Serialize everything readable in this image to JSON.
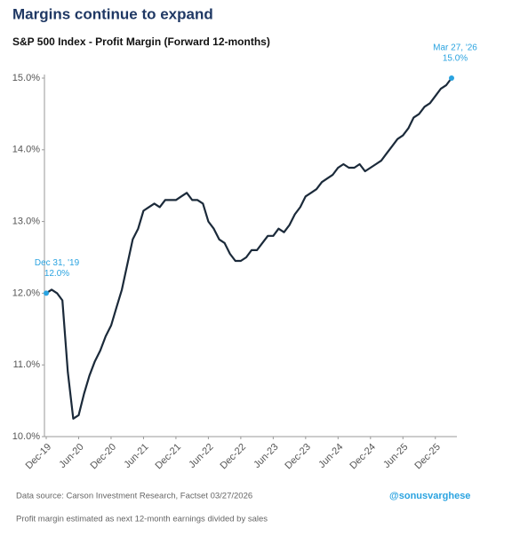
{
  "chart_data": {
    "type": "line",
    "title": "Margins continue to expand",
    "subtitle": "S&P 500 Index - Profit Margin (Forward 12-months)",
    "categories": [
      "Dec-19",
      "Jan-20",
      "Feb-20",
      "Mar-20",
      "Apr-20",
      "May-20",
      "Jun-20",
      "Jul-20",
      "Aug-20",
      "Sep-20",
      "Oct-20",
      "Nov-20",
      "Dec-20",
      "Jan-21",
      "Feb-21",
      "Mar-21",
      "Apr-21",
      "May-21",
      "Jun-21",
      "Jul-21",
      "Aug-21",
      "Sep-21",
      "Oct-21",
      "Nov-21",
      "Dec-21",
      "Jan-22",
      "Feb-22",
      "Mar-22",
      "Apr-22",
      "May-22",
      "Jun-22",
      "Jul-22",
      "Aug-22",
      "Sep-22",
      "Oct-22",
      "Nov-22",
      "Dec-22",
      "Jan-23",
      "Feb-23",
      "Mar-23",
      "Apr-23",
      "May-23",
      "Jun-23",
      "Jul-23",
      "Aug-23",
      "Sep-23",
      "Oct-23",
      "Nov-23",
      "Dec-23",
      "Jan-24",
      "Feb-24",
      "Mar-24",
      "Apr-24",
      "May-24",
      "Jun-24",
      "Jul-24",
      "Aug-24",
      "Sep-24",
      "Oct-24",
      "Nov-24",
      "Dec-24",
      "Jan-25",
      "Feb-25",
      "Mar-25",
      "Apr-25",
      "May-25",
      "Jun-25",
      "Jul-25",
      "Aug-25",
      "Sep-25",
      "Oct-25",
      "Nov-25",
      "Dec-25",
      "Jan-26",
      "Feb-26",
      "Mar-26"
    ],
    "series": [
      {
        "color": "#1b2a3a",
        "values": [
          12.0,
          12.05,
          12.0,
          11.9,
          10.9,
          10.25,
          10.3,
          10.6,
          10.85,
          11.05,
          11.2,
          11.4,
          11.55,
          11.8,
          12.05,
          12.4,
          12.75,
          12.9,
          13.15,
          13.2,
          13.25,
          13.2,
          13.3,
          13.3,
          13.3,
          13.35,
          13.4,
          13.3,
          13.3,
          13.25,
          13.0,
          12.9,
          12.75,
          12.7,
          12.55,
          12.45,
          12.45,
          12.5,
          12.6,
          12.6,
          12.7,
          12.8,
          12.8,
          12.9,
          12.85,
          12.95,
          13.1,
          13.2,
          13.35,
          13.4,
          13.45,
          13.55,
          13.6,
          13.65,
          13.75,
          13.8,
          13.75,
          13.75,
          13.8,
          13.7,
          13.75,
          13.8,
          13.85,
          13.95,
          14.05,
          14.15,
          14.2,
          14.3,
          14.45,
          14.5,
          14.6,
          14.65,
          14.75,
          14.85,
          14.9,
          15.0
        ]
      }
    ],
    "xticks": [
      "Dec-19",
      "Jun-20",
      "Dec-20",
      "Jun-21",
      "Dec-21",
      "Jun-22",
      "Dec-22",
      "Jun-23",
      "Dec-23",
      "Jun-24",
      "Dec-24",
      "Jun-25",
      "Dec-25"
    ],
    "ylim": [
      10,
      15
    ],
    "yticks": [
      {
        "value": 10,
        "label": "10.0%"
      },
      {
        "value": 11,
        "label": "11.0%"
      },
      {
        "value": 12,
        "label": "12.0%"
      },
      {
        "value": 13,
        "label": "13.0%"
      },
      {
        "value": 14,
        "label": "14.0%"
      },
      {
        "value": 15,
        "label": "15.0%"
      }
    ],
    "grid": false,
    "annotation_color": "#2aa3e0",
    "annotations": [
      {
        "index": 0,
        "date": "Dec 31, '19",
        "value_label": "12.0%"
      },
      {
        "index": 75,
        "date": "Mar 27, '26",
        "value_label": "15.0%"
      }
    ],
    "source": "Data source: Carson Investment Research, Factset   03/27/2026",
    "handle": "@sonusvarghese",
    "note": "Profit margin estimated as next 12-month earnings divided by sales"
  }
}
